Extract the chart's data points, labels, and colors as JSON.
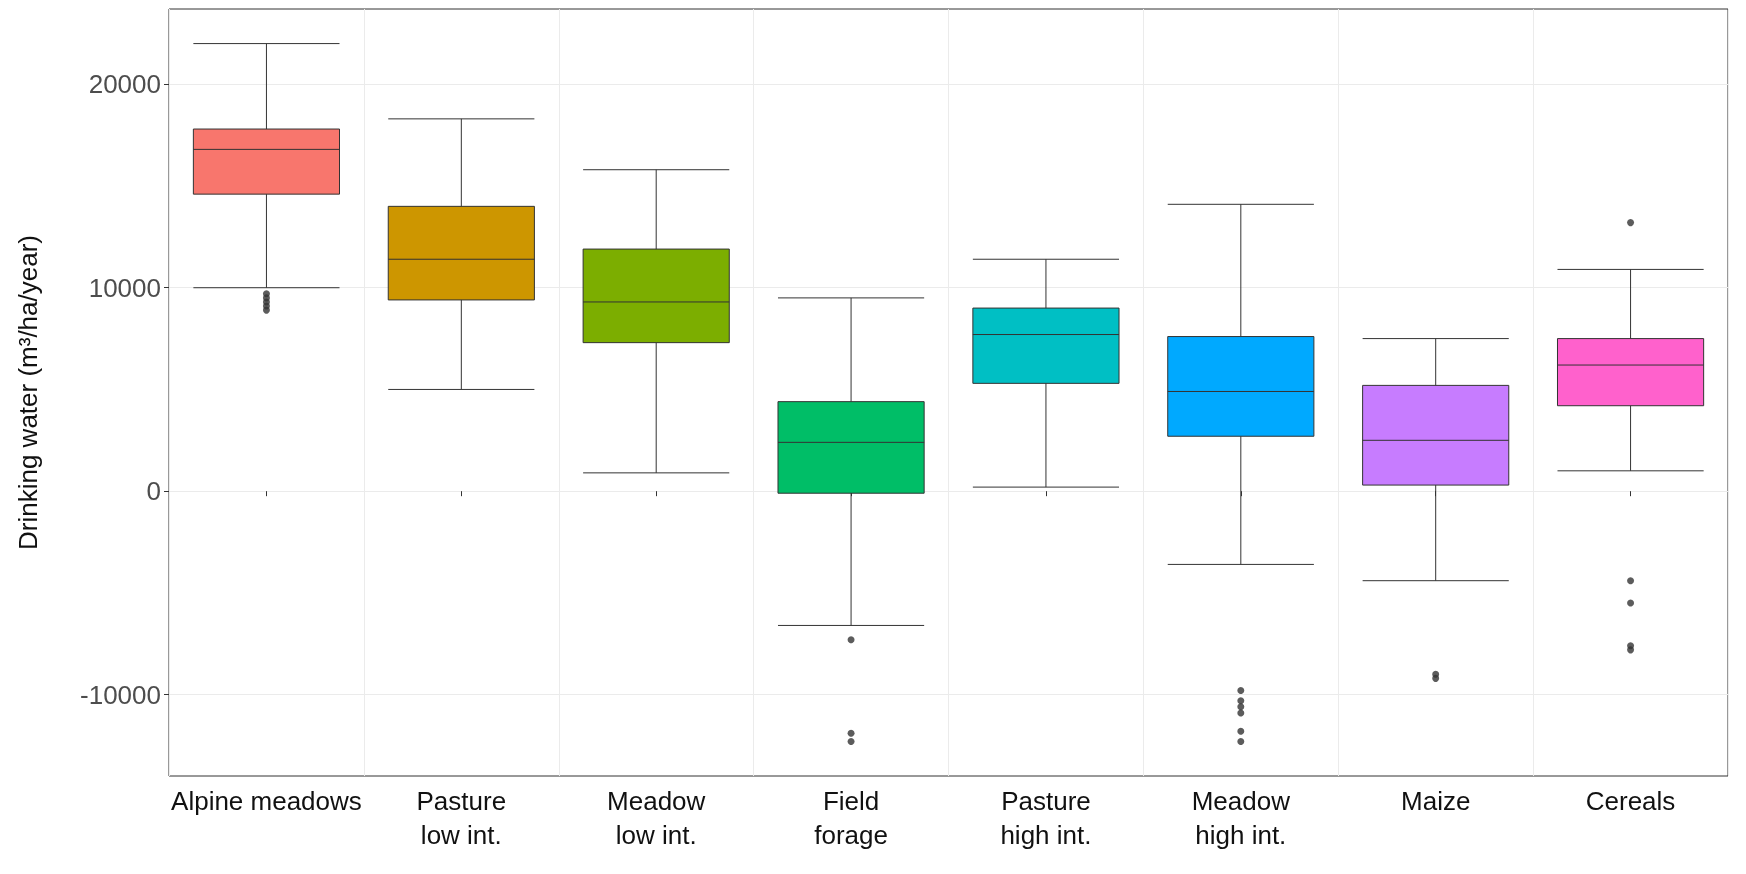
{
  "chart_data": {
    "type": "box",
    "ylabel": "Drinking water (m³/ha/year)",
    "categories": [
      "Alpine meadows",
      "Pasture\nlow int.",
      "Meadow\nlow int.",
      "Field\nforage",
      "Pasture\nhigh int.",
      "Meadow\nhigh int.",
      "Maize",
      "Cereals"
    ],
    "colors": [
      "#f8766d",
      "#cd9600",
      "#7cae00",
      "#00be67",
      "#00bfc4",
      "#00a9ff",
      "#c77cff",
      "#ff61cc"
    ],
    "boxes": [
      {
        "low": 10000,
        "q1": 14600,
        "median": 16800,
        "q3": 17800,
        "high": 22000,
        "outliers": [
          9700,
          9500,
          9300,
          9100,
          8900
        ]
      },
      {
        "low": 5000,
        "q1": 9400,
        "median": 11400,
        "q3": 14000,
        "high": 18300
      },
      {
        "low": 900,
        "q1": 7300,
        "median": 9300,
        "q3": 11900,
        "high": 15800
      },
      {
        "low": -6600,
        "q1": -100,
        "median": 2400,
        "q3": 4400,
        "high": 9500,
        "outliers": [
          -7300,
          -11900,
          -12300
        ]
      },
      {
        "low": 200,
        "q1": 5300,
        "median": 7700,
        "q3": 9000,
        "high": 11400
      },
      {
        "low": -3600,
        "q1": 2700,
        "median": 4900,
        "q3": 7600,
        "high": 14100,
        "outliers": [
          -9800,
          -10300,
          -10600,
          -10900,
          -11800,
          -12300
        ]
      },
      {
        "low": -4400,
        "q1": 300,
        "median": 2500,
        "q3": 5200,
        "high": 7500,
        "outliers": [
          -9000,
          -9200
        ]
      },
      {
        "low": 1000,
        "q1": 4200,
        "median": 6200,
        "q3": 7500,
        "high": 10900,
        "outliers": [
          13200,
          -4400,
          -5500,
          -7600,
          -7800
        ]
      }
    ],
    "ylim": [
      -14000,
      23700
    ],
    "yticks": [
      -10000,
      0,
      10000,
      20000
    ],
    "grid": true
  }
}
